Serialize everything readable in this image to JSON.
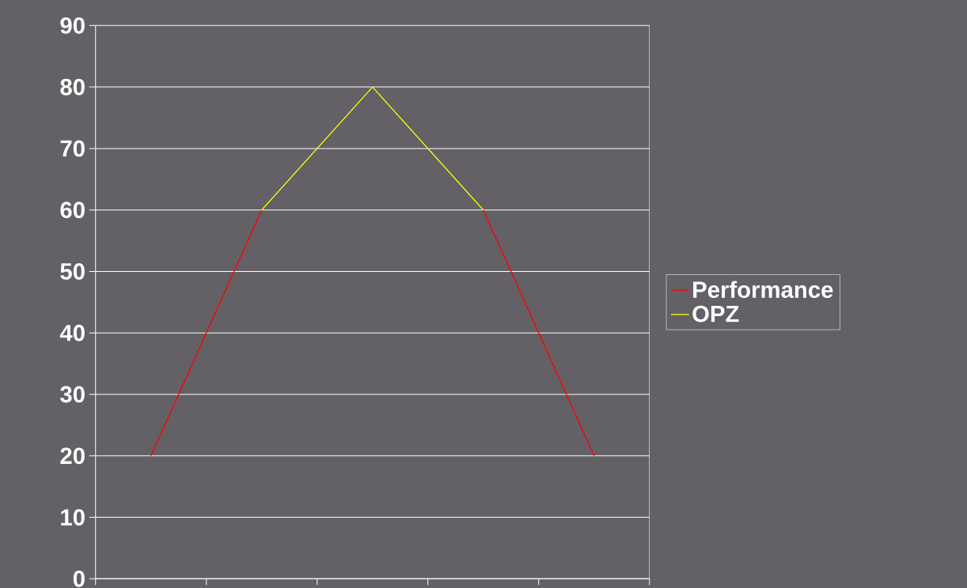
{
  "chart_data": {
    "type": "line",
    "categories": [
      null,
      null,
      null,
      null,
      null
    ],
    "series": [
      {
        "name": "Performance",
        "color": "#ff0000",
        "values": [
          20,
          60,
          null,
          60,
          20
        ]
      },
      {
        "name": "OPZ",
        "color": "#ffff00",
        "values": [
          null,
          60,
          80,
          60,
          null
        ]
      }
    ],
    "ylim": [
      0,
      90
    ],
    "yticks": [
      0,
      10,
      20,
      30,
      40,
      50,
      60,
      70,
      80,
      90
    ],
    "grid": "y",
    "legend": "right"
  }
}
